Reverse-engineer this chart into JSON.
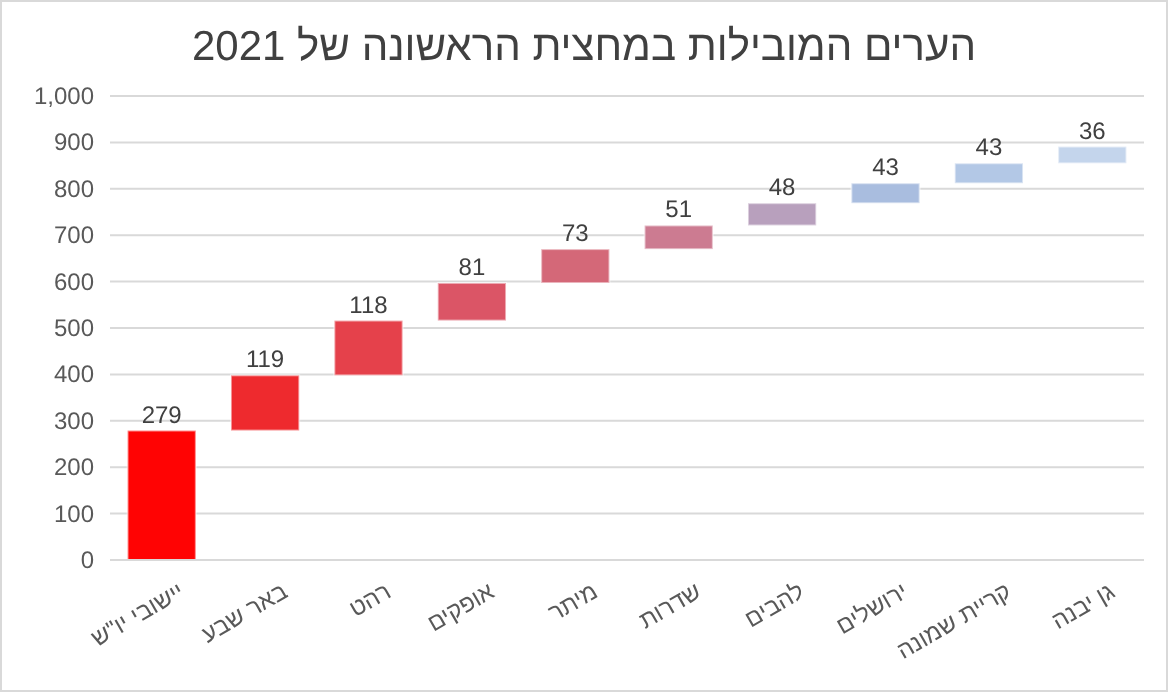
{
  "chart_data": {
    "type": "bar",
    "title": "הערים המובילות במחצית הראשונה של 2021",
    "categories": [
      "יישובי יו\"ש",
      "באר שבע",
      "רהט",
      "אופקים",
      "מיתר",
      "שדרות",
      "להבים",
      "ירושלים",
      "קריית שמונה",
      "גן יבנה"
    ],
    "values": [
      279,
      119,
      118,
      81,
      73,
      51,
      48,
      43,
      43,
      36
    ],
    "base": [
      0,
      279,
      398,
      516,
      597,
      670,
      721,
      769,
      812,
      855
    ],
    "colors": [
      "#ff0303",
      "#ee2a2e",
      "#e5414b",
      "#db5566",
      "#d46878",
      "#cc7b91",
      "#b8a0bd",
      "#a9bddf",
      "#b3c8e6",
      "#c4d5ec"
    ],
    "ylim": [
      0,
      1000
    ],
    "yticks": [
      0,
      100,
      200,
      300,
      400,
      500,
      600,
      700,
      800,
      900,
      {
        "value": 1000,
        "label": "1,000"
      }
    ],
    "grid": "y",
    "data_labels": true
  }
}
